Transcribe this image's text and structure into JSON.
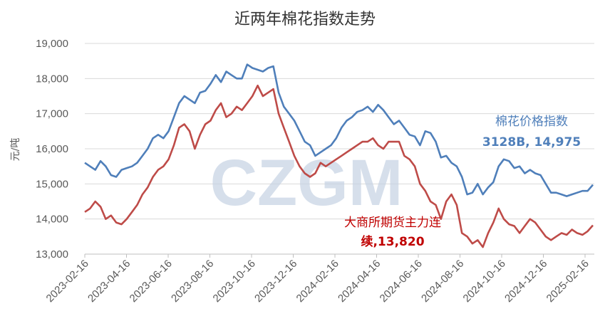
{
  "chart_data": {
    "type": "line",
    "title": "近两年棉花指数走势",
    "ylabel": "元/吨",
    "xlabel": "",
    "ylim": [
      13000,
      19000
    ],
    "y_ticks": [
      13000,
      14000,
      15000,
      16000,
      17000,
      18000,
      19000
    ],
    "y_tick_labels": [
      "13,000",
      "14,000",
      "15,000",
      "16,000",
      "17,000",
      "18,000",
      "19,000"
    ],
    "x_tick_labels": [
      "2023-02-16",
      "2023-04-16",
      "2023-06-16",
      "2023-08-16",
      "2023-10-16",
      "2023-12-16",
      "2024-02-16",
      "2024-04-16",
      "2024-06-16",
      "2024-08-16",
      "2024-10-16",
      "2024-12-16",
      "2025-02-16"
    ],
    "grid": true,
    "watermark": "CZGM",
    "series": [
      {
        "name": "棉花价格指数",
        "label_line1": "棉花价格指数",
        "label_line2": "3128B, 14,975",
        "color": "#4f7fba",
        "values": [
          15600,
          15500,
          15400,
          15650,
          15500,
          15250,
          15200,
          15400,
          15450,
          15500,
          15600,
          15800,
          16000,
          16300,
          16400,
          16300,
          16500,
          16900,
          17300,
          17500,
          17400,
          17300,
          17600,
          17650,
          17850,
          18100,
          17900,
          18200,
          18100,
          18000,
          18000,
          18400,
          18300,
          18250,
          18200,
          18300,
          18350,
          17600,
          17200,
          17000,
          16800,
          16500,
          16200,
          16100,
          15800,
          15900,
          16000,
          16100,
          16300,
          16600,
          16800,
          16900,
          17050,
          17100,
          17200,
          17050,
          17250,
          17100,
          16900,
          16700,
          16800,
          16600,
          16400,
          16350,
          16100,
          16500,
          16450,
          16200,
          15750,
          15800,
          15600,
          15500,
          15200,
          14700,
          14750,
          15000,
          14700,
          14900,
          15050,
          15500,
          15700,
          15650,
          15450,
          15500,
          15300,
          15400,
          15300,
          15250,
          15000,
          14750,
          14750,
          14700,
          14650,
          14700,
          14750,
          14800,
          14800,
          14975
        ]
      },
      {
        "name": "大商所期货主力连续",
        "label_line1": "大商所期货主力连",
        "label_line2": "续,13,820",
        "color": "#be4b48",
        "values": [
          14200,
          14300,
          14500,
          14350,
          14000,
          14100,
          13900,
          13850,
          14000,
          14200,
          14400,
          14700,
          14900,
          15200,
          15400,
          15500,
          15700,
          16100,
          16600,
          16700,
          16500,
          16000,
          16400,
          16700,
          16800,
          17100,
          17300,
          16900,
          17000,
          17200,
          17100,
          17300,
          17500,
          17800,
          17500,
          17600,
          17700,
          17000,
          16600,
          16200,
          15800,
          15500,
          15300,
          15200,
          15300,
          15600,
          15500,
          15600,
          15700,
          15800,
          15900,
          16000,
          16100,
          16200,
          16200,
          16300,
          16100,
          16000,
          16200,
          16200,
          16200,
          15800,
          15700,
          15500,
          15000,
          14800,
          14500,
          14400,
          14000,
          14500,
          14700,
          14400,
          13600,
          13500,
          13300,
          13400,
          13200,
          13600,
          13900,
          14300,
          14000,
          13850,
          13800,
          13600,
          13800,
          14000,
          13900,
          13700,
          13500,
          13400,
          13500,
          13600,
          13550,
          13700,
          13600,
          13550,
          13650,
          13820
        ]
      }
    ]
  }
}
